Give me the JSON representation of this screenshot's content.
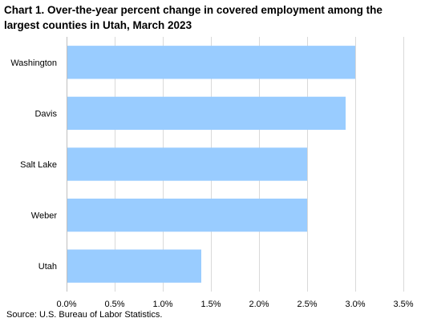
{
  "chart_data": {
    "type": "bar",
    "orientation": "horizontal",
    "title": "Chart 1.  Over-the-year percent change in covered employment among the largest counties in Utah, March 2023",
    "categories": [
      "Washington",
      "Davis",
      "Salt Lake",
      "Weber",
      "Utah"
    ],
    "values": [
      3.0,
      2.9,
      2.5,
      2.5,
      1.4
    ],
    "xlim": [
      0,
      3.5
    ],
    "xticks": [
      0,
      0.5,
      1.0,
      1.5,
      2.0,
      2.5,
      3.0,
      3.5
    ],
    "xtick_labels": [
      "0.0%",
      "0.5%",
      "1.0%",
      "1.5%",
      "2.0%",
      "2.5%",
      "3.0%",
      "3.5%"
    ],
    "xlabel": "",
    "ylabel": "",
    "grid": "vertical",
    "legend": "none",
    "bar_color": "#99ccff",
    "grid_color": "#d9d9d9",
    "source": "Source: U.S. Bureau of Labor Statistics."
  }
}
